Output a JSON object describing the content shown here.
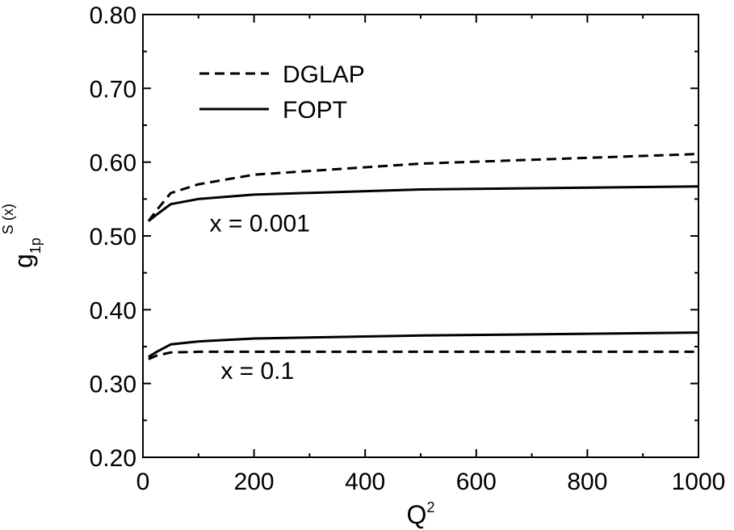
{
  "chart_data": {
    "type": "line",
    "title": "",
    "xlabel": {
      "base": "Q",
      "sup": "2"
    },
    "ylabel": {
      "base": "g",
      "sub": "1p",
      "sup": "S (x)"
    },
    "xlim": [
      0,
      1000
    ],
    "ylim": [
      0.2,
      0.8
    ],
    "x_ticks": [
      0,
      200,
      400,
      600,
      800,
      1000
    ],
    "x_tick_labels": [
      "0",
      "200",
      "400",
      "600",
      "800",
      "1000"
    ],
    "y_ticks": [
      0.2,
      0.3,
      0.4,
      0.5,
      0.6,
      0.7,
      0.8
    ],
    "y_tick_labels": [
      "0.20",
      "0.30",
      "0.40",
      "0.50",
      "0.60",
      "0.70",
      "0.80"
    ],
    "grid": false,
    "legend": {
      "placement": "top-left",
      "entries": [
        {
          "label": "DGLAP",
          "style": "dashed"
        },
        {
          "label": "FOPT",
          "style": "solid"
        }
      ]
    },
    "annotations": [
      {
        "text": "x = 0.001",
        "x": 120,
        "y": 0.506
      },
      {
        "text": "x = 0.1",
        "x": 140,
        "y": 0.306
      }
    ],
    "series": [
      {
        "group": "x = 0.001",
        "method": "DGLAP",
        "style": "dashed",
        "x": [
          10,
          25,
          50,
          100,
          200,
          500,
          1000
        ],
        "y": [
          0.52,
          0.535,
          0.558,
          0.57,
          0.583,
          0.598,
          0.611
        ]
      },
      {
        "group": "x = 0.001",
        "method": "FOPT",
        "style": "solid",
        "x": [
          10,
          25,
          50,
          100,
          200,
          500,
          1000
        ],
        "y": [
          0.52,
          0.529,
          0.543,
          0.55,
          0.556,
          0.563,
          0.567
        ]
      },
      {
        "group": "x = 0.1",
        "method": "FOPT",
        "style": "solid",
        "x": [
          10,
          25,
          50,
          100,
          200,
          500,
          1000
        ],
        "y": [
          0.336,
          0.343,
          0.353,
          0.357,
          0.361,
          0.365,
          0.369
        ]
      },
      {
        "group": "x = 0.1",
        "method": "DGLAP",
        "style": "dashed",
        "x": [
          10,
          25,
          50,
          100,
          200,
          500,
          1000
        ],
        "y": [
          0.333,
          0.338,
          0.342,
          0.343,
          0.343,
          0.343,
          0.343
        ]
      }
    ]
  }
}
